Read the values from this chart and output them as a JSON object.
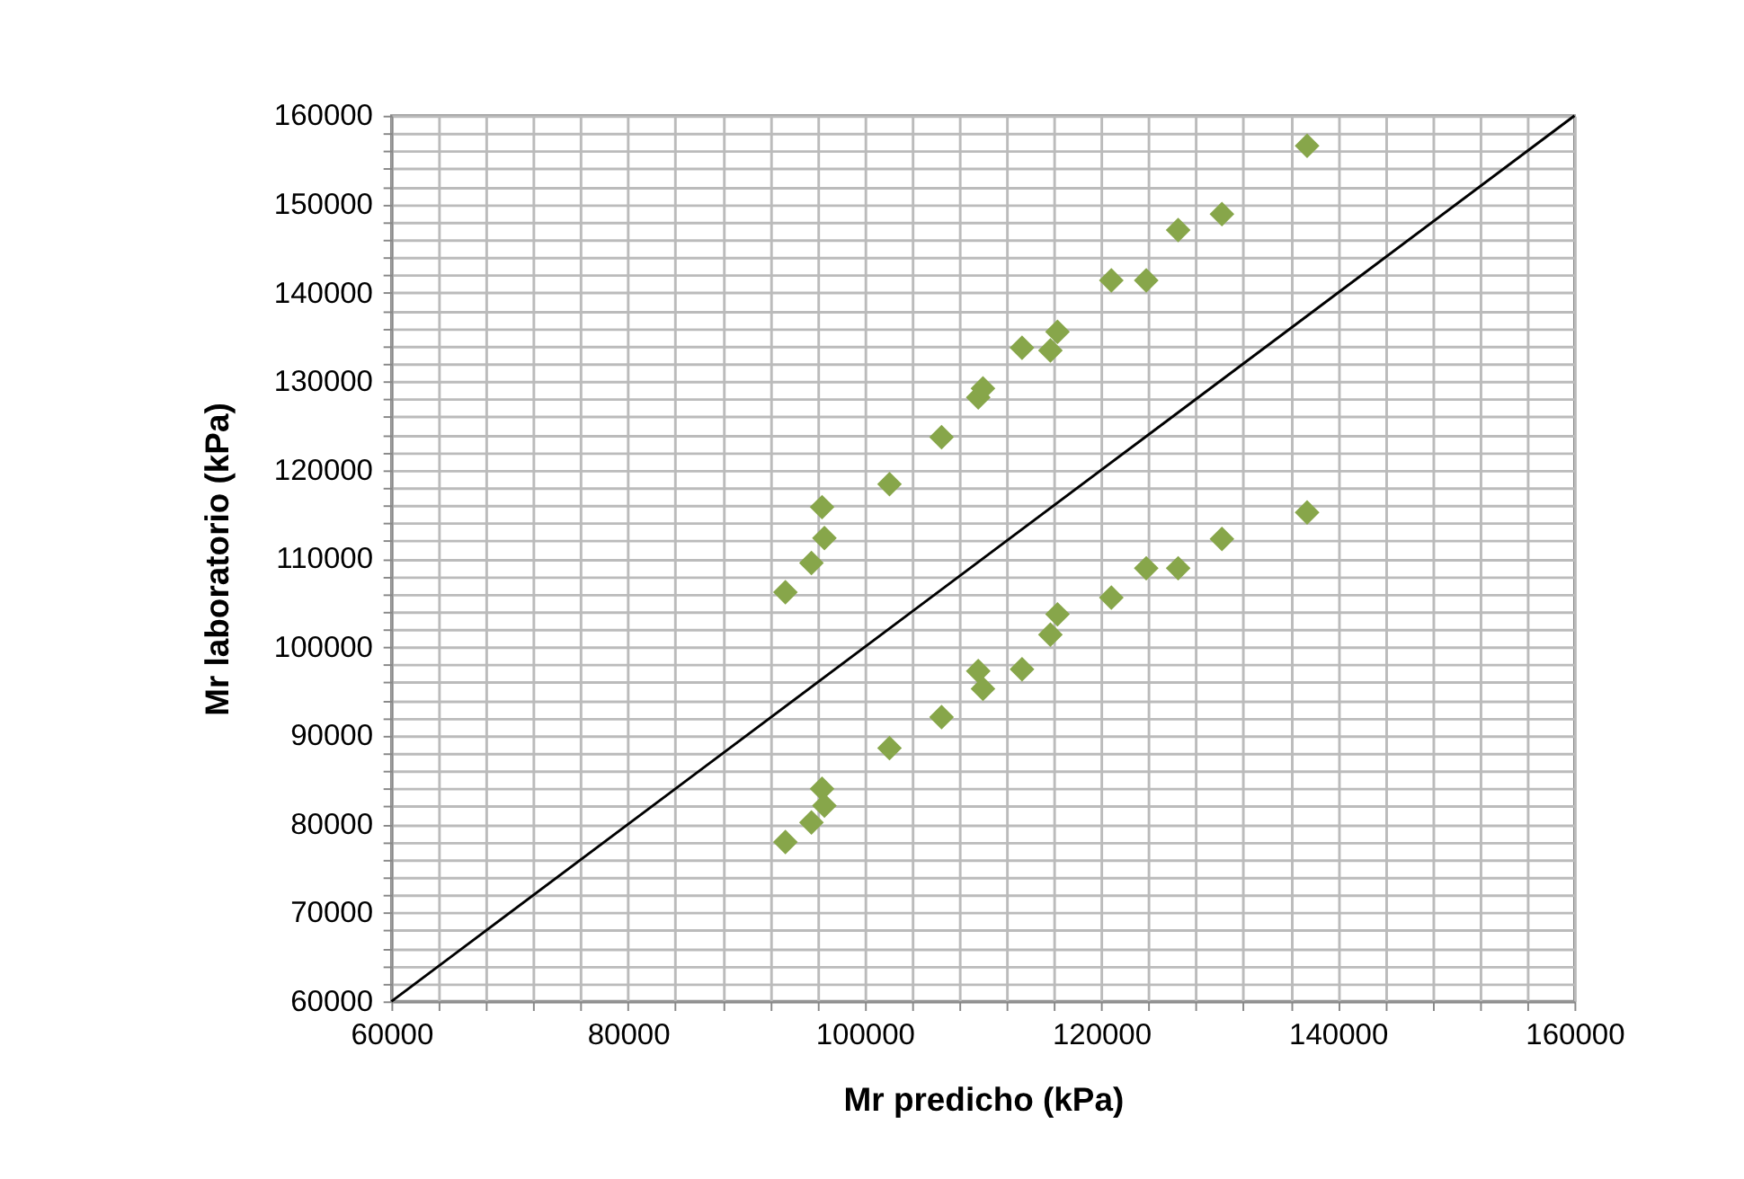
{
  "chart_data": {
    "type": "scatter",
    "xlabel": "Mr predicho (kPa)",
    "ylabel": "Mr laboratorio (kPa)",
    "marker": "diamond",
    "grid": true,
    "xlim": [
      60000,
      160000
    ],
    "ylim": [
      60000,
      160000
    ],
    "xticks": [
      60000,
      {
        "value": 64000,
        "label": null
      },
      {
        "value": 68000,
        "label": null
      },
      {
        "value": 72000,
        "label": null
      },
      {
        "value": 76000,
        "label": null
      },
      80000,
      {
        "value": 84000,
        "label": null
      },
      {
        "value": 88000,
        "label": null
      },
      {
        "value": 92000,
        "label": null
      },
      {
        "value": 96000,
        "label": null
      },
      100000,
      {
        "value": 104000,
        "label": null
      },
      {
        "value": 108000,
        "label": null
      },
      {
        "value": 112000,
        "label": null
      },
      {
        "value": 116000,
        "label": null
      },
      120000,
      {
        "value": 124000,
        "label": null
      },
      {
        "value": 128000,
        "label": null
      },
      {
        "value": 132000,
        "label": null
      },
      {
        "value": 136000,
        "label": null
      },
      140000,
      {
        "value": 144000,
        "label": null
      },
      {
        "value": 148000,
        "label": null
      },
      {
        "value": 152000,
        "label": null
      },
      {
        "value": 156000,
        "label": null
      },
      160000
    ],
    "yticks": [
      60000,
      {
        "value": 62000,
        "label": null
      },
      {
        "value": 64000,
        "label": null
      },
      {
        "value": 66000,
        "label": null
      },
      {
        "value": 68000,
        "label": null
      },
      70000,
      {
        "value": 72000,
        "label": null
      },
      {
        "value": 74000,
        "label": null
      },
      {
        "value": 76000,
        "label": null
      },
      {
        "value": 78000,
        "label": null
      },
      80000,
      {
        "value": 82000,
        "label": null
      },
      {
        "value": 84000,
        "label": null
      },
      {
        "value": 86000,
        "label": null
      },
      {
        "value": 88000,
        "label": null
      },
      90000,
      {
        "value": 92000,
        "label": null
      },
      {
        "value": 94000,
        "label": null
      },
      {
        "value": 96000,
        "label": null
      },
      {
        "value": 98000,
        "label": null
      },
      100000,
      {
        "value": 102000,
        "label": null
      },
      {
        "value": 104000,
        "label": null
      },
      {
        "value": 106000,
        "label": null
      },
      {
        "value": 108000,
        "label": null
      },
      110000,
      {
        "value": 112000,
        "label": null
      },
      {
        "value": 114000,
        "label": null
      },
      {
        "value": 116000,
        "label": null
      },
      {
        "value": 118000,
        "label": null
      },
      120000,
      {
        "value": 122000,
        "label": null
      },
      {
        "value": 124000,
        "label": null
      },
      {
        "value": 126000,
        "label": null
      },
      {
        "value": 128000,
        "label": null
      },
      130000,
      {
        "value": 132000,
        "label": null
      },
      {
        "value": 134000,
        "label": null
      },
      {
        "value": 136000,
        "label": null
      },
      {
        "value": 138000,
        "label": null
      },
      140000,
      {
        "value": 142000,
        "label": null
      },
      {
        "value": 144000,
        "label": null
      },
      {
        "value": 146000,
        "label": null
      },
      {
        "value": 148000,
        "label": null
      },
      150000,
      {
        "value": 152000,
        "label": null
      },
      {
        "value": 154000,
        "label": null
      },
      {
        "value": 156000,
        "label": null
      },
      {
        "value": 158000,
        "label": null
      },
      160000
    ],
    "series": [
      {
        "color": "#87a64a",
        "x": [
          93300,
          95500,
          96400,
          96600,
          102100,
          106500,
          109600,
          110000,
          113300,
          115700,
          116300,
          120850,
          123800,
          126500,
          130200,
          137400
        ],
        "values": [
          106200,
          109500,
          115800,
          112300,
          118400,
          123700,
          128200,
          129200,
          133800,
          133500,
          135600,
          141400,
          141400,
          147100,
          148900,
          156600
        ]
      },
      {
        "color": "#87a64a",
        "x": [
          93300,
          95500,
          96400,
          96600,
          102100,
          106500,
          109600,
          110000,
          113300,
          115700,
          116300,
          120850,
          123800,
          126500,
          130200,
          137400
        ],
        "values": [
          78000,
          80200,
          84000,
          82100,
          88600,
          92100,
          97300,
          95300,
          97500,
          101400,
          103700,
          105600,
          108900,
          108900,
          112200,
          115200
        ]
      },
      {
        "type": "line",
        "color": "#000000",
        "marker": "none",
        "x": [
          60000,
          160000
        ],
        "values": [
          60000,
          160000
        ]
      }
    ]
  }
}
